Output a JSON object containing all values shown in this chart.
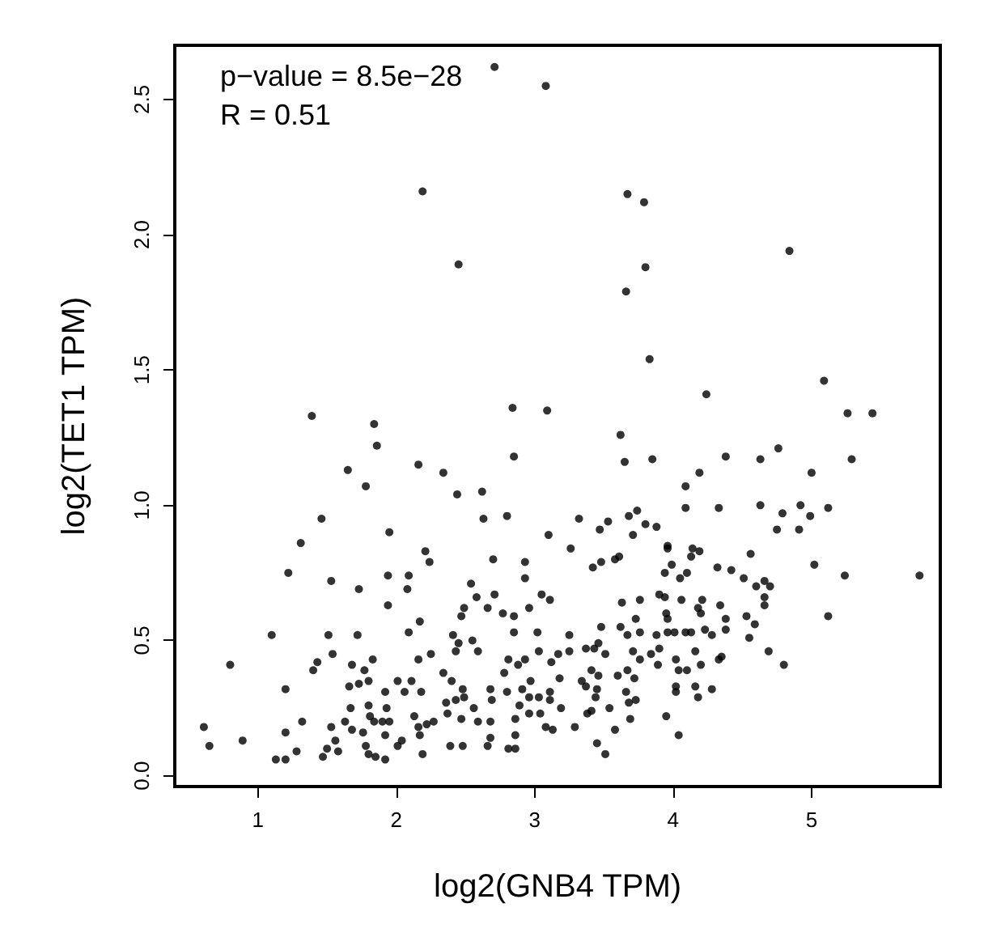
{
  "chart_data": {
    "type": "scatter",
    "xlabel": "log2(GNB4 TPM)",
    "ylabel": "log2(TET1 TPM)",
    "annotations": [
      "p−value = 8.5e−28",
      "R = 0.51"
    ],
    "xlim": [
      0.4,
      5.93
    ],
    "ylim": [
      -0.04,
      2.7
    ],
    "xticks": [
      1,
      2,
      3,
      4,
      5
    ],
    "yticks": [
      {
        "value": 0,
        "label": "0.0"
      },
      {
        "value": 0.5,
        "label": "0.5"
      },
      {
        "value": 1,
        "label": "1.0"
      },
      {
        "value": 1.5,
        "label": "1.5"
      },
      {
        "value": 2,
        "label": "2.0"
      },
      {
        "value": 2.5,
        "label": "2.5"
      }
    ],
    "grid": false,
    "marker": "circle",
    "series": [
      {
        "color": "#000000",
        "x": [
          2.19,
          3.67,
          3.79,
          2.45,
          3.8,
          3.66,
          4.84,
          3.83,
          4.24,
          5.09,
          1.39,
          1.84,
          1.86,
          2.84,
          3.09,
          3.62,
          5.26,
          5.44,
          1.65,
          2.16,
          2.34,
          2.85,
          3.65,
          3.85,
          4.19,
          4.38,
          4.63,
          4.76,
          5.0,
          5.29,
          2.71,
          3.08,
          1.78,
          2.44,
          2.62,
          2.63,
          2.8,
          3.1,
          1.46,
          1.31,
          1.22,
          1.53,
          1.95,
          1.1,
          0.8,
          0.61,
          0.65,
          0.89,
          1.13,
          1.2,
          1.2,
          1.2,
          1.28,
          1.32,
          1.4,
          1.43,
          1.51,
          1.54,
          1.72,
          1.73,
          1.94,
          1.94,
          2.09,
          2.08,
          2.09,
          2.21,
          2.24,
          2.17,
          2.16,
          2.25,
          2.41,
          2.47,
          2.49,
          2.54,
          2.58,
          2.66,
          2.7,
          2.71,
          2.77,
          2.85,
          2.85,
          2.93,
          2.93,
          2.96,
          3.05,
          3.11,
          3.02,
          3.03,
          2.45,
          2.55,
          2.59,
          2.43,
          2.34,
          2.4,
          2.48,
          1.68,
          1.83,
          1.77,
          1.66,
          1.73,
          1.8,
          1.92,
          2.01,
          2.11,
          2.06,
          2.18,
          1.93,
          1.67,
          1.8,
          1.53,
          1.63,
          1.68,
          1.76,
          1.81,
          1.84,
          1.9,
          1.95,
          1.92,
          1.78,
          1.8,
          1.85,
          1.92,
          1.5,
          1.58,
          1.47,
          1.56,
          2.01,
          2.04,
          2.19,
          2.13,
          2.16,
          2.22,
          2.27,
          2.17,
          2.36,
          2.37,
          2.43,
          2.49,
          2.39,
          2.48,
          2.47,
          2.56,
          2.59,
          2.68,
          2.69,
          2.68,
          2.68,
          2.66,
          2.8,
          2.81,
          2.86,
          2.86,
          2.89,
          2.86,
          2.78,
          2.81,
          2.88,
          2.93,
          2.97,
          2.91,
          2.96,
          3.03,
          3.11,
          2.96,
          3.04,
          3.11,
          3.08,
          3.13,
          3.12,
          3.17,
          3.18,
          3.19,
          4.09,
          4.09,
          4.33,
          4.63,
          4.92,
          5.12,
          4.79,
          4.99,
          4.75,
          4.91,
          3.32,
          3.47,
          3.53,
          3.68,
          3.74,
          3.8,
          3.88,
          3.71,
          3.26,
          3.42,
          3.48,
          3.58,
          3.61,
          3.96,
          3.96,
          4.14,
          4.19,
          4.13,
          3.99,
          3.94,
          4.1,
          4.05,
          4.32,
          4.42,
          4.51,
          4.56,
          4.6,
          4.66,
          4.7,
          4.66,
          4.66,
          5.02,
          5.24,
          5.78,
          5.12,
          4.69,
          4.8,
          4.53,
          4.59,
          4.55,
          4.38,
          4.38,
          4.34,
          4.21,
          4.18,
          4.2,
          4.06,
          3.9,
          3.94,
          3.76,
          3.63,
          3.73,
          3.76,
          3.95,
          3.96,
          3.96,
          4.01,
          3.88,
          4.09,
          4.13,
          4.23,
          4.28,
          3.62,
          3.67,
          3.48,
          3.25,
          3.25,
          3.37,
          3.43,
          3.46,
          3.51,
          3.71,
          3.76,
          3.67,
          3.72,
          3.84,
          3.9,
          3.89,
          4.02,
          4.04,
          4.1,
          4.16,
          4.2,
          4.33,
          4.35,
          4.02,
          4.02,
          4.16,
          4.18,
          4.28,
          3.95,
          4.04,
          3.34,
          3.41,
          3.46,
          3.45,
          3.44,
          3.37,
          3.6,
          3.66,
          3.68,
          3.73,
          3.69,
          3.54,
          3.38,
          3.41,
          3.29,
          3.58,
          3.45,
          3.51
        ],
        "values": [
          2.16,
          2.15,
          2.12,
          1.89,
          1.88,
          1.79,
          1.94,
          1.54,
          1.41,
          1.46,
          1.33,
          1.3,
          1.22,
          1.36,
          1.35,
          1.26,
          1.34,
          1.34,
          1.13,
          1.15,
          1.12,
          1.18,
          1.16,
          1.17,
          1.12,
          1.18,
          1.17,
          1.21,
          1.12,
          1.17,
          2.62,
          2.55,
          1.07,
          1.04,
          1.05,
          0.95,
          0.96,
          0.89,
          0.95,
          0.86,
          0.75,
          0.72,
          0.9,
          0.52,
          0.41,
          0.18,
          0.11,
          0.13,
          0.06,
          0.06,
          0.32,
          0.16,
          0.09,
          0.2,
          0.39,
          0.42,
          0.52,
          0.45,
          0.52,
          0.69,
          0.74,
          0.63,
          0.74,
          0.69,
          0.53,
          0.83,
          0.79,
          0.57,
          0.43,
          0.45,
          0.52,
          0.59,
          0.62,
          0.71,
          0.66,
          0.62,
          0.8,
          0.67,
          0.6,
          0.59,
          0.53,
          0.79,
          0.73,
          0.62,
          0.67,
          0.65,
          0.53,
          0.46,
          0.49,
          0.5,
          0.46,
          0.46,
          0.38,
          0.35,
          0.32,
          0.41,
          0.43,
          0.39,
          0.33,
          0.34,
          0.35,
          0.31,
          0.35,
          0.35,
          0.31,
          0.31,
          0.25,
          0.25,
          0.26,
          0.18,
          0.2,
          0.17,
          0.16,
          0.22,
          0.2,
          0.2,
          0.2,
          0.15,
          0.11,
          0.08,
          0.07,
          0.06,
          0.1,
          0.09,
          0.07,
          0.13,
          0.11,
          0.13,
          0.08,
          0.22,
          0.18,
          0.19,
          0.2,
          0.15,
          0.27,
          0.23,
          0.28,
          0.29,
          0.11,
          0.11,
          0.21,
          0.25,
          0.2,
          0.32,
          0.28,
          0.2,
          0.14,
          0.11,
          0.31,
          0.1,
          0.1,
          0.15,
          0.26,
          0.21,
          0.38,
          0.43,
          0.41,
          0.43,
          0.35,
          0.32,
          0.29,
          0.29,
          0.31,
          0.23,
          0.23,
          0.28,
          0.18,
          0.17,
          0.42,
          0.45,
          0.36,
          0.25,
          1.07,
          0.99,
          0.99,
          1.0,
          1.0,
          0.99,
          0.97,
          0.96,
          0.91,
          0.91,
          0.95,
          0.91,
          0.94,
          0.96,
          0.98,
          0.93,
          0.92,
          0.89,
          0.84,
          0.77,
          0.79,
          0.8,
          0.81,
          0.85,
          0.84,
          0.84,
          0.83,
          0.81,
          0.78,
          0.75,
          0.75,
          0.73,
          0.77,
          0.76,
          0.73,
          0.82,
          0.7,
          0.72,
          0.7,
          0.66,
          0.63,
          0.78,
          0.74,
          0.74,
          0.59,
          0.46,
          0.41,
          0.59,
          0.56,
          0.51,
          0.58,
          0.54,
          0.63,
          0.65,
          0.62,
          0.6,
          0.65,
          0.67,
          0.66,
          0.65,
          0.64,
          0.58,
          0.53,
          0.6,
          0.58,
          0.53,
          0.53,
          0.52,
          0.53,
          0.53,
          0.54,
          0.52,
          0.55,
          0.52,
          0.55,
          0.52,
          0.46,
          0.47,
          0.47,
          0.49,
          0.45,
          0.46,
          0.43,
          0.39,
          0.36,
          0.45,
          0.47,
          0.41,
          0.43,
          0.39,
          0.39,
          0.46,
          0.41,
          0.43,
          0.44,
          0.33,
          0.31,
          0.33,
          0.29,
          0.32,
          0.22,
          0.15,
          0.35,
          0.39,
          0.37,
          0.32,
          0.29,
          0.33,
          0.37,
          0.31,
          0.27,
          0.28,
          0.21,
          0.25,
          0.23,
          0.24,
          0.18,
          0.17,
          0.12,
          0.08
        ]
      }
    ]
  }
}
